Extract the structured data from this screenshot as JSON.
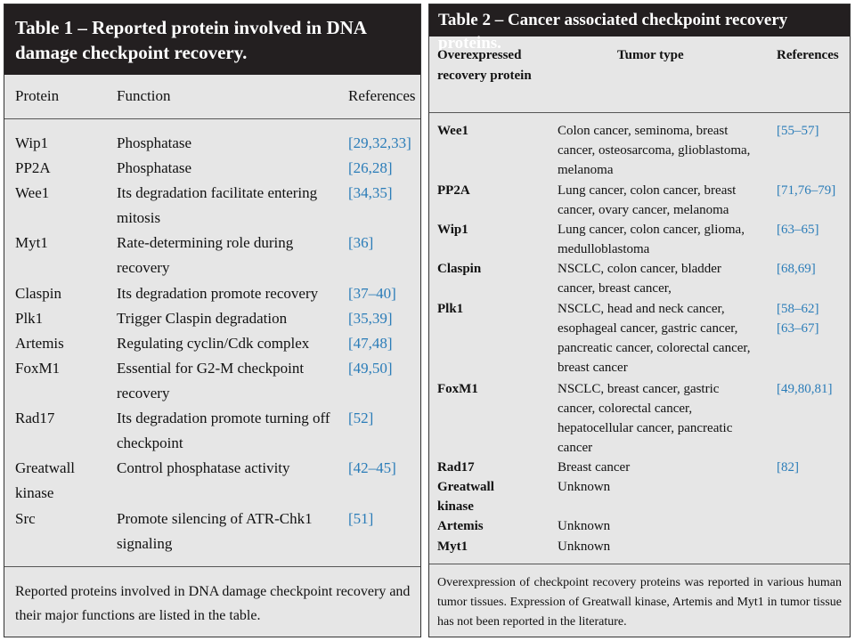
{
  "table1": {
    "title": "Table 1 – Reported protein involved in DNA damage checkpoint recovery.",
    "headers": [
      "Protein",
      "Function",
      "References"
    ],
    "rows": [
      {
        "protein": "Wip1",
        "function": "Phosphatase",
        "refs": "[29,32,33]"
      },
      {
        "protein": "PP2A",
        "function": "Phosphatase",
        "refs": "[26,28]"
      },
      {
        "protein": "Wee1",
        "function": "Its degradation facilitate entering mitosis",
        "refs": "[34,35]"
      },
      {
        "protein": "Myt1",
        "function": "Rate-determining role during recovery",
        "refs": "[36]"
      },
      {
        "protein": "Claspin",
        "function": "Its degradation promote recovery",
        "refs": "[37–40]"
      },
      {
        "protein": "Plk1",
        "function": "Trigger Claspin degradation",
        "refs": "[35,39]"
      },
      {
        "protein": "Artemis",
        "function": "Regulating cyclin/Cdk complex",
        "refs": "[47,48]"
      },
      {
        "protein": "FoxM1",
        "function": "Essential for G2-M checkpoint recovery",
        "refs": "[49,50]"
      },
      {
        "protein": "Rad17",
        "function": "Its degradation promote turning off checkpoint",
        "refs": "[52]"
      },
      {
        "protein": "Greatwall kinase",
        "function": "Control phosphatase activity",
        "refs": "[42–45]"
      },
      {
        "protein": "Src",
        "function": "Promote silencing of ATR-Chk1 signaling",
        "refs": "[51]"
      }
    ],
    "footnote": "Reported proteins involved in DNA damage checkpoint recovery and their major functions are listed in the table."
  },
  "table2": {
    "title": "Table 2 – Cancer associated checkpoint recovery proteins.",
    "headers": [
      "Overexpressed recovery protein",
      "Tumor type",
      "References"
    ],
    "rows": [
      {
        "protein": "Wee1",
        "tumor": "Colon cancer, seminoma, breast cancer, osteosarcoma, glioblastoma, melanoma",
        "refs": "[55–57]"
      },
      {
        "protein": "PP2A",
        "tumor": "Lung cancer, colon cancer, breast cancer, ovary cancer, melanoma",
        "refs": "[71,76–79]"
      },
      {
        "protein": "Wip1",
        "tumor": "Lung cancer, colon cancer, glioma, medulloblastoma",
        "refs": "[63–65]"
      },
      {
        "protein": "Claspin",
        "tumor": "NSCLC, colon cancer, bladder cancer, breast cancer,",
        "refs": "[68,69]"
      },
      {
        "protein": "Plk1",
        "tumor": "NSCLC, head and neck cancer, esophageal cancer, gastric cancer, pancreatic cancer, colorectal cancer, breast cancer",
        "refs": "[58–62] [63–67]"
      },
      {
        "protein": "FoxM1",
        "tumor": "NSCLC, breast cancer, gastric cancer, colorectal cancer, hepatocellular cancer, pancreatic cancer",
        "refs": "[49,80,81]"
      },
      {
        "protein": "Rad17",
        "tumor": "Breast cancer",
        "refs": "[82]"
      },
      {
        "protein": "Greatwall kinase",
        "tumor": "Unknown",
        "refs": ""
      },
      {
        "protein": "Artemis",
        "tumor": "Unknown",
        "refs": ""
      },
      {
        "protein": "Myt1",
        "tumor": "Unknown",
        "refs": ""
      }
    ],
    "footnote": "Overexpression of checkpoint recovery proteins was reported in various human tumor tissues. Expression of Greatwall kinase, Artemis and Myt1 in tumor tissue has not been reported in the literature."
  },
  "colors": {
    "title_bg": "#231f20",
    "panel_bg": "#e6e6e6",
    "reference_link": "#2a7cb8"
  }
}
